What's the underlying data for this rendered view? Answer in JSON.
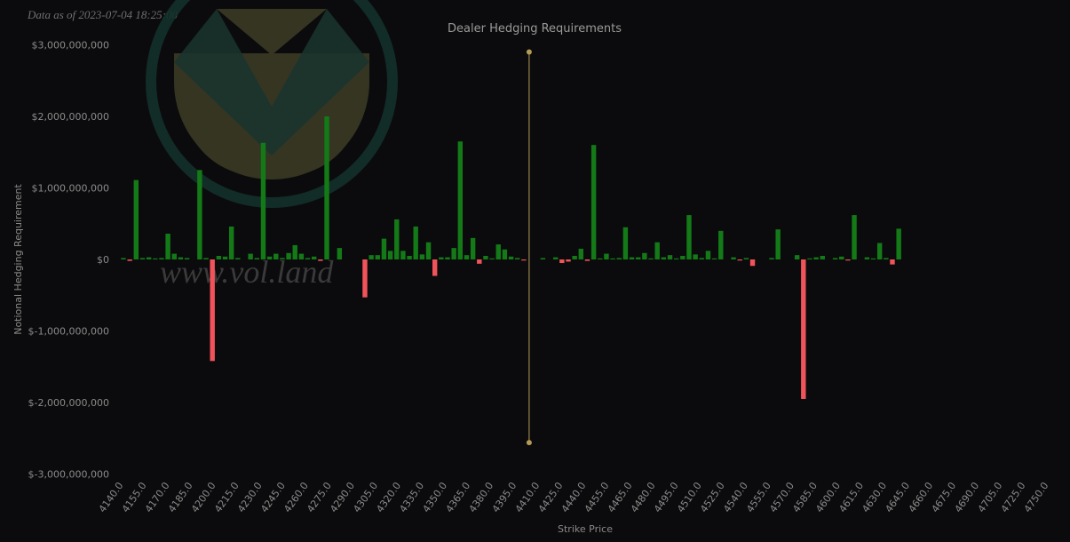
{
  "header": {
    "timestamp": "Data as of 2023-07-04 18:25:00"
  },
  "watermark": {
    "logo": "vol.land V logo",
    "text": "www.vol.land"
  },
  "colors": {
    "background": "#0b0b0d",
    "positive": "#137a17",
    "negative": "#f0545a",
    "marker": "#b49b55",
    "text": "#8a8a8a",
    "title": "#9a9a9a",
    "logo_ring": "#13302a",
    "logo_fill": "#3a3a25"
  },
  "chart_data": {
    "type": "bar",
    "title": "Dealer Hedging Requirements",
    "xlabel": "Strike Price",
    "ylabel": "Notional Hedging Requirement",
    "ylim": [
      -3000000000,
      3000000000
    ],
    "yticks": [
      3000000000,
      2000000000,
      1000000000,
      0,
      -1000000000,
      -2000000000,
      -3000000000
    ],
    "ytick_labels": [
      "$3,000,000,000",
      "$2,000,000,000",
      "$1,000,000,000",
      "$0",
      "$-1,000,000,000",
      "$-2,000,000,000",
      "$-3,000,000,000"
    ],
    "xtick_labels": [
      "4140.0",
      "4155.0",
      "4170.0",
      "4185.0",
      "4200.0",
      "4215.0",
      "4230.0",
      "4245.0",
      "4260.0",
      "4275.0",
      "4290.0",
      "4305.0",
      "4320.0",
      "4335.0",
      "4350.0",
      "4365.0",
      "4380.0",
      "4395.0",
      "4410.0",
      "4425.0",
      "4440.0",
      "4455.0",
      "4465.0",
      "4480.0",
      "4495.0",
      "4510.0",
      "4525.0",
      "4540.0",
      "4555.0",
      "4570.0",
      "4585.0",
      "4600.0",
      "4615.0",
      "4630.0",
      "4645.0",
      "4660.0",
      "4675.0",
      "4690.0",
      "4705.0",
      "4725.0",
      "4750.0"
    ],
    "spot_marker": {
      "x": 4462.0,
      "y_top": 2900000000,
      "y_bottom": -2560000000
    },
    "grid": false,
    "legend": "none",
    "strikes": [
      4140,
      4145,
      4150,
      4155,
      4160,
      4165,
      4170,
      4175,
      4180,
      4185,
      4190,
      4195,
      4200,
      4205,
      4210,
      4215,
      4220,
      4225,
      4230,
      4235,
      4240,
      4245,
      4250,
      4255,
      4260,
      4265,
      4270,
      4275,
      4280,
      4285,
      4290,
      4295,
      4300,
      4305,
      4310,
      4315,
      4320,
      4325,
      4330,
      4335,
      4340,
      4345,
      4350,
      4355,
      4360,
      4365,
      4370,
      4375,
      4380,
      4385,
      4390,
      4395,
      4400,
      4405,
      4410,
      4415,
      4420,
      4425,
      4430,
      4435,
      4440,
      4445,
      4450,
      4455,
      4460,
      4465,
      4470,
      4475,
      4480,
      4485,
      4490,
      4495,
      4500,
      4505,
      4510,
      4515,
      4520,
      4525,
      4530,
      4535,
      4540,
      4545,
      4550,
      4555,
      4560,
      4565,
      4570,
      4575,
      4580,
      4585,
      4590,
      4595,
      4600,
      4605,
      4610,
      4615,
      4620,
      4625,
      4630,
      4635,
      4640,
      4645,
      4650,
      4655,
      4660,
      4665,
      4670,
      4675,
      4680,
      4685,
      4690,
      4700,
      4705,
      4710,
      4715,
      4720,
      4725,
      4730,
      4735,
      4740,
      4745,
      4750
    ],
    "values": [
      20000000,
      -20000000,
      1110000000,
      20000000,
      30000000,
      10000000,
      20000000,
      360000000,
      80000000,
      30000000,
      20000000,
      0,
      1250000000,
      20000000,
      -1420000000,
      50000000,
      40000000,
      460000000,
      20000000,
      0,
      80000000,
      20000000,
      1630000000,
      40000000,
      80000000,
      20000000,
      90000000,
      200000000,
      80000000,
      20000000,
      40000000,
      -20000000,
      2000000000,
      0,
      160000000,
      0,
      0,
      0,
      -530000000,
      60000000,
      60000000,
      290000000,
      120000000,
      560000000,
      120000000,
      50000000,
      460000000,
      70000000,
      240000000,
      -230000000,
      30000000,
      30000000,
      160000000,
      1650000000,
      60000000,
      300000000,
      -60000000,
      50000000,
      10000000,
      210000000,
      140000000,
      40000000,
      20000000,
      -10000000,
      0,
      0,
      20000000,
      0,
      30000000,
      -50000000,
      -30000000,
      50000000,
      150000000,
      -20000000,
      1600000000,
      10000000,
      80000000,
      10000000,
      20000000,
      450000000,
      30000000,
      30000000,
      90000000,
      10000000,
      240000000,
      30000000,
      60000000,
      10000000,
      50000000,
      620000000,
      70000000,
      20000000,
      120000000,
      10000000,
      400000000,
      0,
      30000000,
      -10000000,
      20000000,
      -90000000,
      0,
      0,
      20000000,
      420000000,
      0,
      0,
      60000000,
      -1950000000,
      10000000,
      30000000,
      50000000,
      20000000,
      40000000,
      -10000000,
      620000000,
      0,
      30000000,
      10000000,
      230000000,
      20000000,
      -70000000,
      430000000
    ]
  }
}
